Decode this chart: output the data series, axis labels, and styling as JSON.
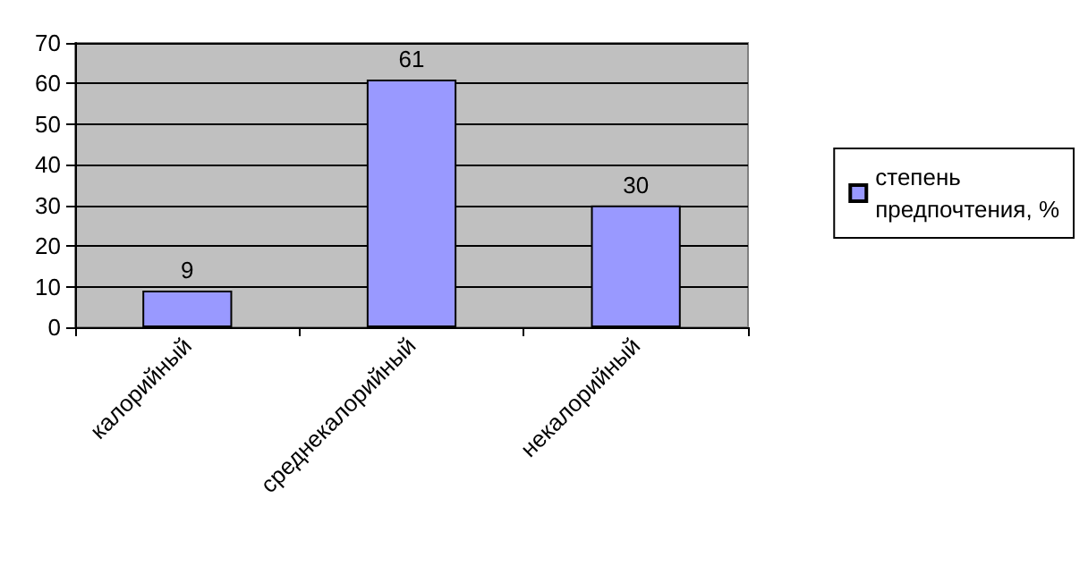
{
  "chart_data": {
    "type": "bar",
    "categories": [
      "калорийный",
      "среднекалорийный",
      "некалорийный"
    ],
    "series": [
      {
        "name": "степень предпочтения, %",
        "color": "#9999ff",
        "values": [
          9,
          61,
          30
        ]
      }
    ],
    "ylim": [
      0,
      70
    ],
    "yticks": [
      0,
      10,
      20,
      30,
      40,
      50,
      60,
      70
    ],
    "grid": "y",
    "legend": "right",
    "data_labels": true
  }
}
